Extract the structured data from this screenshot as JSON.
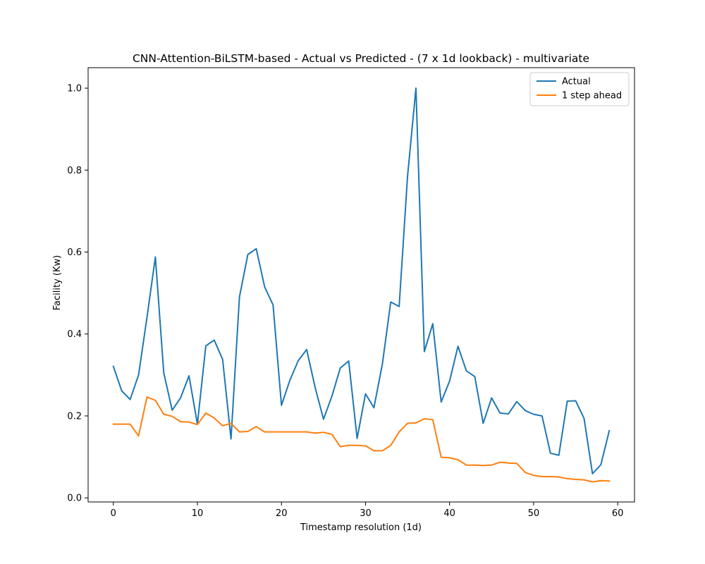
{
  "chart_data": {
    "type": "line",
    "title": "CNN-Attention-BiLSTM-based - Actual vs Predicted - (7 x 1d lookback) - multivariate",
    "xlabel": "Timestamp resolution (1d)",
    "ylabel": "Facility (Kw)",
    "xlim": [
      -3,
      62
    ],
    "ylim": [
      -0.01,
      1.05
    ],
    "xticks": [
      0,
      10,
      20,
      30,
      40,
      50,
      60
    ],
    "yticks": [
      0.0,
      0.2,
      0.4,
      0.6,
      0.8,
      1.0
    ],
    "xtick_labels": [
      "0",
      "10",
      "20",
      "30",
      "40",
      "50",
      "60"
    ],
    "ytick_labels": [
      "0.0",
      "0.2",
      "0.4",
      "0.6",
      "0.8",
      "1.0"
    ],
    "grid": false,
    "legend_position": "top-right",
    "x": [
      0,
      1,
      2,
      3,
      4,
      5,
      6,
      7,
      8,
      9,
      10,
      11,
      12,
      13,
      14,
      15,
      16,
      17,
      18,
      19,
      20,
      21,
      22,
      23,
      24,
      25,
      26,
      27,
      28,
      29,
      30,
      31,
      32,
      33,
      34,
      35,
      36,
      37,
      38,
      39,
      40,
      41,
      42,
      43,
      44,
      45,
      46,
      47,
      48,
      49,
      50,
      51,
      52,
      53,
      54,
      55,
      56,
      57,
      58,
      59
    ],
    "series": [
      {
        "name": "Actual",
        "color": "#1f77b4",
        "values": [
          0.321,
          0.261,
          0.24,
          0.3,
          0.44,
          0.588,
          0.305,
          0.214,
          0.244,
          0.298,
          0.18,
          0.371,
          0.385,
          0.338,
          0.144,
          0.49,
          0.594,
          0.608,
          0.515,
          0.471,
          0.226,
          0.287,
          0.335,
          0.362,
          0.27,
          0.192,
          0.248,
          0.317,
          0.334,
          0.145,
          0.254,
          0.22,
          0.326,
          0.478,
          0.467,
          0.785,
          1.0,
          0.357,
          0.425,
          0.234,
          0.285,
          0.37,
          0.31,
          0.296,
          0.182,
          0.244,
          0.207,
          0.205,
          0.235,
          0.213,
          0.204,
          0.2,
          0.109,
          0.104,
          0.236,
          0.237,
          0.194,
          0.059,
          0.081,
          0.164
        ]
      },
      {
        "name": "1 step ahead",
        "color": "#ff7f0e",
        "values": [
          0.18,
          0.18,
          0.18,
          0.151,
          0.246,
          0.238,
          0.204,
          0.199,
          0.186,
          0.185,
          0.179,
          0.207,
          0.195,
          0.176,
          0.182,
          0.161,
          0.162,
          0.174,
          0.161,
          0.161,
          0.161,
          0.161,
          0.161,
          0.161,
          0.158,
          0.16,
          0.155,
          0.125,
          0.128,
          0.128,
          0.127,
          0.115,
          0.115,
          0.128,
          0.161,
          0.182,
          0.183,
          0.193,
          0.191,
          0.099,
          0.098,
          0.093,
          0.08,
          0.08,
          0.079,
          0.08,
          0.087,
          0.085,
          0.084,
          0.062,
          0.055,
          0.052,
          0.052,
          0.051,
          0.047,
          0.045,
          0.044,
          0.039,
          0.042,
          0.041
        ]
      }
    ]
  }
}
